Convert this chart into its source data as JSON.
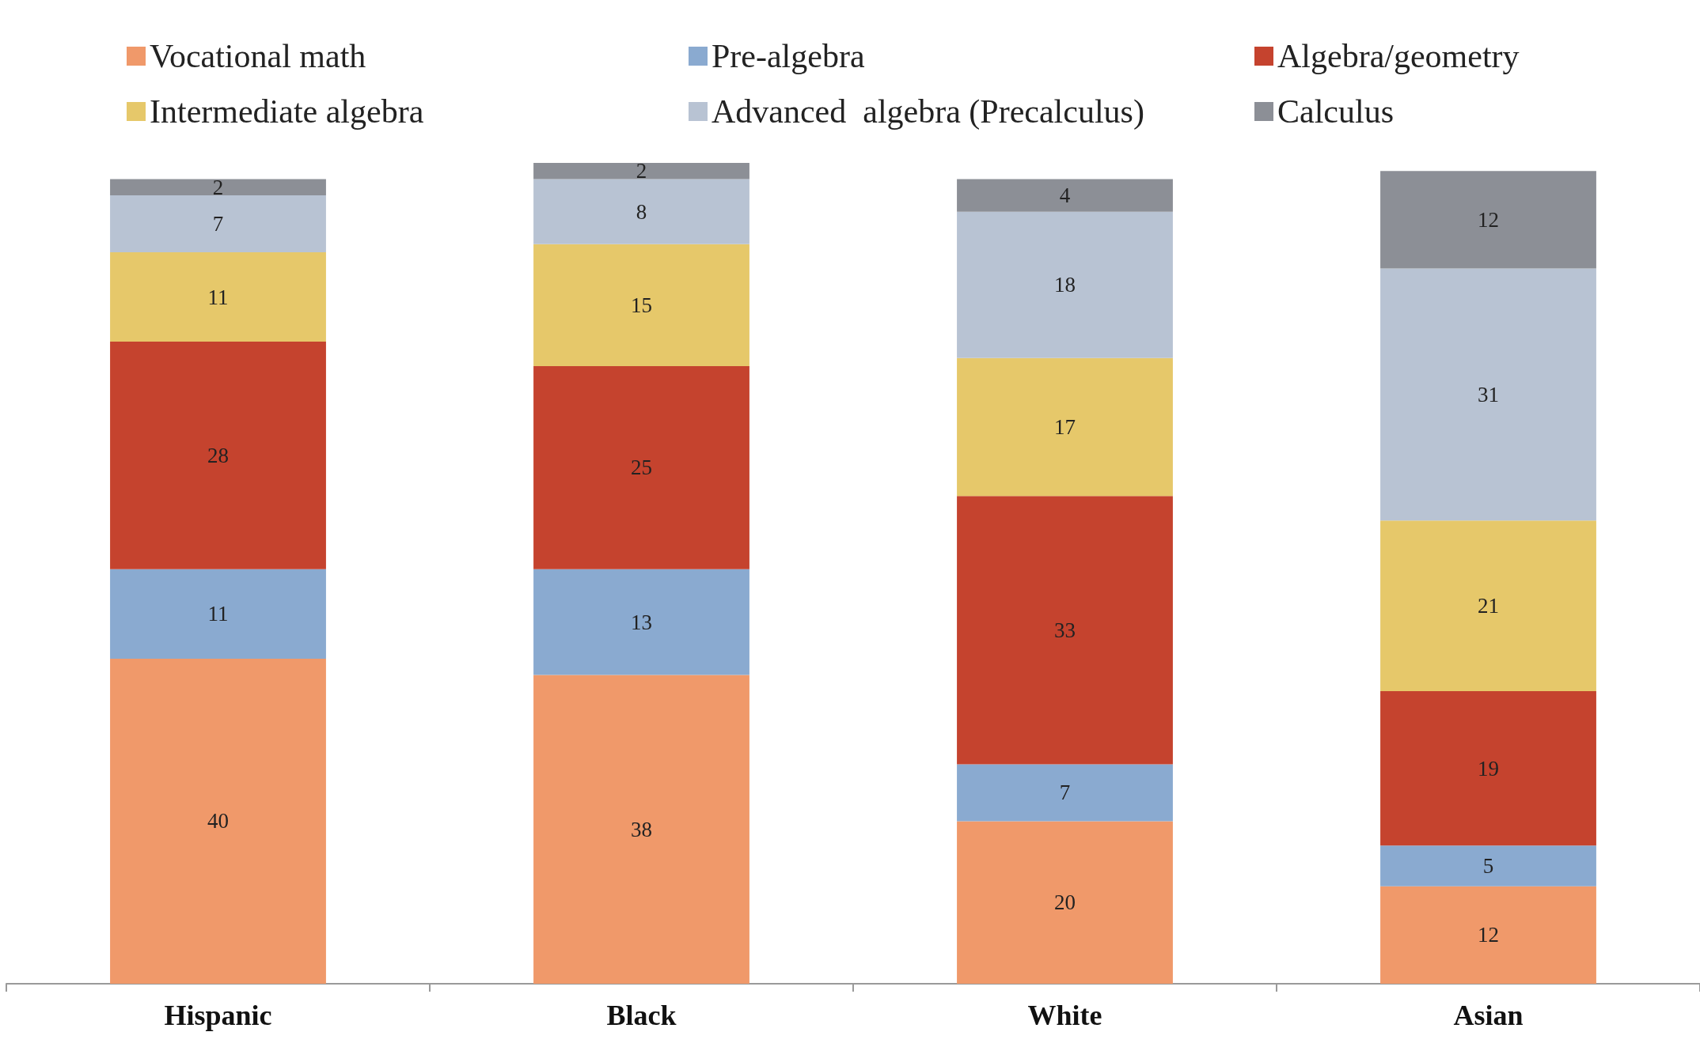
{
  "chart_data": {
    "type": "bar",
    "stacked": true,
    "data_labels": true,
    "legend": "top",
    "grid": false,
    "tick_labels": "x",
    "categories": [
      "Hispanic",
      "Black",
      "White",
      "Asian"
    ],
    "series": [
      {
        "name": "Vocational math",
        "color": "#f0996a",
        "values": [
          40,
          38,
          20,
          12
        ]
      },
      {
        "name": "Pre-algebra",
        "color": "#8aaad0",
        "values": [
          11,
          13,
          7,
          5
        ]
      },
      {
        "name": "Algebra/geometry",
        "color": "#c5432e",
        "values": [
          28,
          25,
          33,
          19
        ]
      },
      {
        "name": "Intermediate algebra",
        "color": "#e6c86a",
        "values": [
          11,
          15,
          17,
          21
        ]
      },
      {
        "name": "Advanced  algebra (Precalculus)",
        "color": "#b8c3d3",
        "values": [
          7,
          8,
          18,
          31
        ]
      },
      {
        "name": "Calculus",
        "color": "#8c8f96",
        "values": [
          2,
          2,
          4,
          12
        ]
      }
    ]
  }
}
